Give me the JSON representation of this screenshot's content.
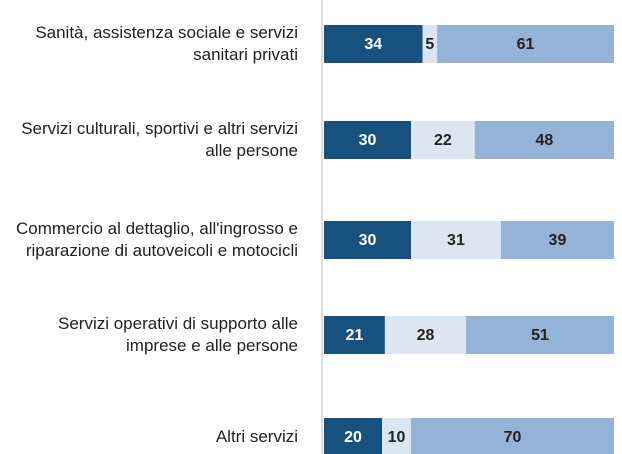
{
  "chart_data": {
    "type": "bar",
    "orientation": "horizontal",
    "stacked": true,
    "categories": [
      "Sanità, assistenza sociale e servizi sanitari privati",
      "Servizi culturali, sportivi e altri servizi alle persone",
      "Commercio al dettaglio, all'ingrosso e riparazione di autoveicoli e motocicli",
      "Servizi operativi di supporto alle imprese e alle persone",
      "Altri servizi"
    ],
    "series": [
      {
        "color": "#17527f",
        "values": [
          34,
          30,
          30,
          21,
          20
        ]
      },
      {
        "color": "#dce6f2",
        "values": [
          5,
          22,
          31,
          28,
          10
        ]
      },
      {
        "color": "#95b3d7",
        "values": [
          61,
          48,
          39,
          51,
          70
        ]
      }
    ],
    "xlim": [
      0,
      100
    ]
  }
}
